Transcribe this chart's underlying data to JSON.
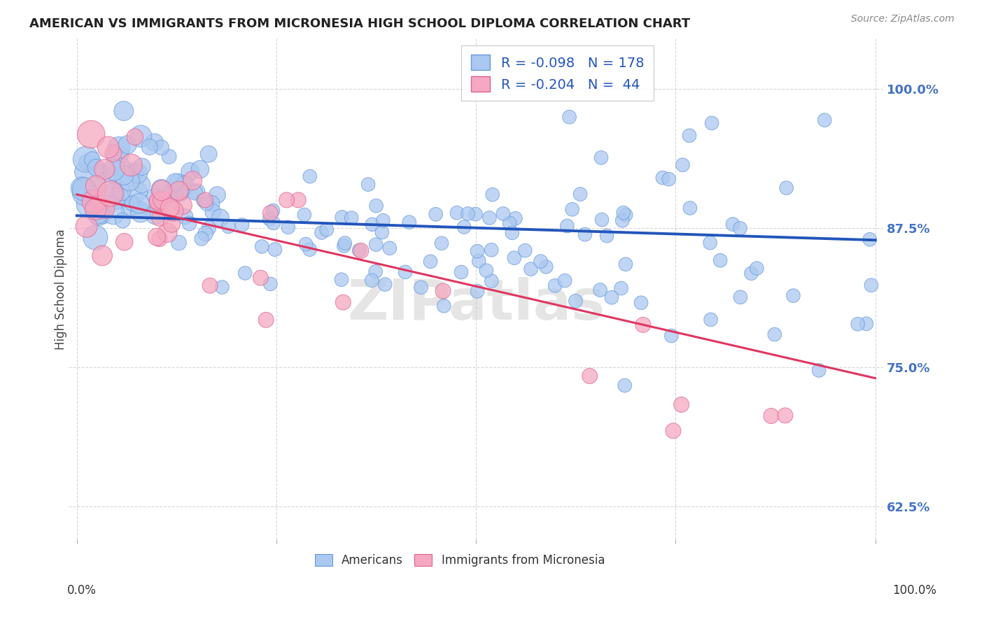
{
  "title": "AMERICAN VS IMMIGRANTS FROM MICRONESIA HIGH SCHOOL DIPLOMA CORRELATION CHART",
  "source": "Source: ZipAtlas.com",
  "ylabel": "High School Diploma",
  "legend_label1": "Americans",
  "legend_label2": "Immigrants from Micronesia",
  "R_american": -0.098,
  "N_american": 178,
  "R_micronesia": -0.204,
  "N_micronesia": 44,
  "american_color": "#aac8f0",
  "american_edge": "#6699dd",
  "micronesia_color": "#f5a8c0",
  "micronesia_edge": "#e06090",
  "trend_american_color": "#2255bb",
  "trend_micronesia_color": "#e03560",
  "watermark": "ZIPatlas",
  "yticklabels": [
    "62.5%",
    "75.0%",
    "87.5%",
    "100.0%"
  ],
  "ytick_values": [
    0.625,
    0.75,
    0.875,
    1.0
  ],
  "ytick_color": "#4472c4",
  "grid_color": "#cccccc",
  "title_fontsize": 13,
  "source_fontsize": 10,
  "legend_fontsize": 14,
  "legend_R_color": "#2255bb",
  "ylim_min": 0.595,
  "ylim_max": 1.045,
  "xlim_min": -0.01,
  "xlim_max": 1.01,
  "trend_am_intercept": 0.886,
  "trend_am_slope": -0.022,
  "trend_mic_intercept": 0.905,
  "trend_mic_slope": -0.165
}
